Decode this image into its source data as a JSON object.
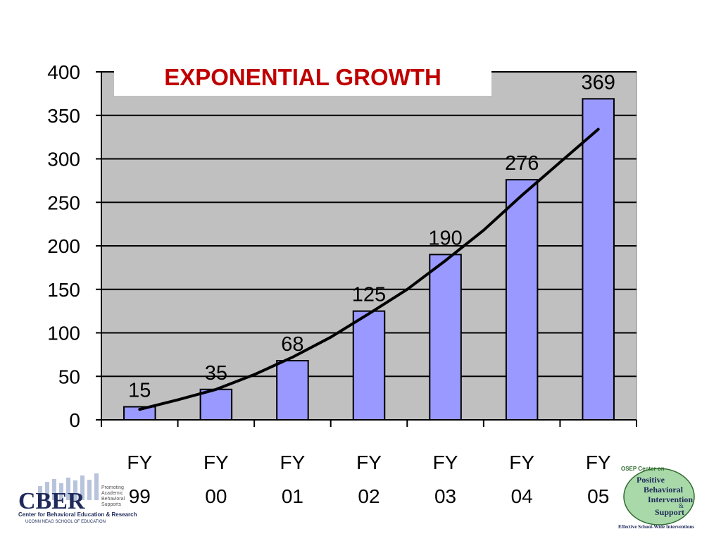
{
  "colors": {
    "plot_background": "#C0C0C0",
    "bar_fill": "#9999FF",
    "bar_stroke": "#000000",
    "trend_line": "#000000",
    "title_color": "#C00000",
    "title_box": "#FFFFFF",
    "cber_navy": "#1F2A5A",
    "pbis_green": "#2F6B2F"
  },
  "chart_data": {
    "type": "bar",
    "title": "EXPONENTIAL GROWTH",
    "categories": [
      [
        "FY",
        "99"
      ],
      [
        "FY",
        "00"
      ],
      [
        "FY",
        "01"
      ],
      [
        "FY",
        "02"
      ],
      [
        "FY",
        "03"
      ],
      [
        "FY",
        "04"
      ],
      [
        "FY",
        "05"
      ]
    ],
    "values": [
      15,
      35,
      68,
      125,
      190,
      276,
      369
    ],
    "data_labels": [
      "15",
      "35",
      "68",
      "125",
      "190",
      "276",
      "369"
    ],
    "ylim": [
      0,
      400
    ],
    "yticks": [
      0,
      50,
      100,
      150,
      200,
      250,
      300,
      350,
      400
    ],
    "grid": true,
    "trendline": {
      "type": "exponential-fit",
      "points": [
        [
          0,
          12
        ],
        [
          0.5,
          23
        ],
        [
          1,
          35
        ],
        [
          1.5,
          52
        ],
        [
          2,
          72
        ],
        [
          2.5,
          95
        ],
        [
          3,
          122
        ],
        [
          3.5,
          150
        ],
        [
          4,
          183
        ],
        [
          4.5,
          218
        ],
        [
          5,
          258
        ],
        [
          5.5,
          296
        ],
        [
          6,
          334
        ]
      ]
    }
  },
  "logos": {
    "left": {
      "name": "CBER",
      "side_lines": [
        "Promoting",
        "Academic",
        "Behavioral",
        "Supports"
      ],
      "caption": "Center for Behavioral Education & Research",
      "subcaption": "UCONN NEAG SCHOOL OF EDUCATION"
    },
    "right": {
      "header": "OSEP Center on",
      "lines": [
        "Positive",
        "Behavioral",
        "Intervention",
        "&",
        "Support"
      ],
      "footer": "Effective School-Wide Interventions"
    }
  }
}
